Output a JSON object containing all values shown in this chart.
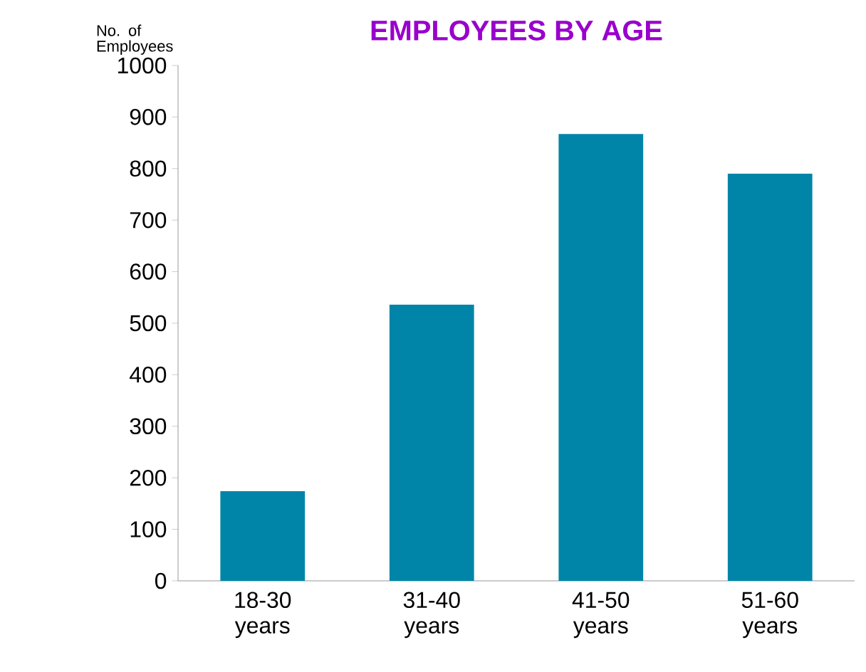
{
  "chart_data": {
    "type": "bar",
    "title": "EMPLOYEES BY AGE",
    "ylabel": "No. of Employees",
    "categories": [
      "18-30 years",
      "31-40 years",
      "41-50 years",
      "51-60 years"
    ],
    "values": [
      174,
      536,
      867,
      790
    ],
    "color": "#0085a8",
    "ylim": [
      0,
      1000
    ],
    "yticks": [
      0,
      100,
      200,
      300,
      400,
      500,
      600,
      700,
      800,
      900,
      1000
    ],
    "grid": false
  }
}
